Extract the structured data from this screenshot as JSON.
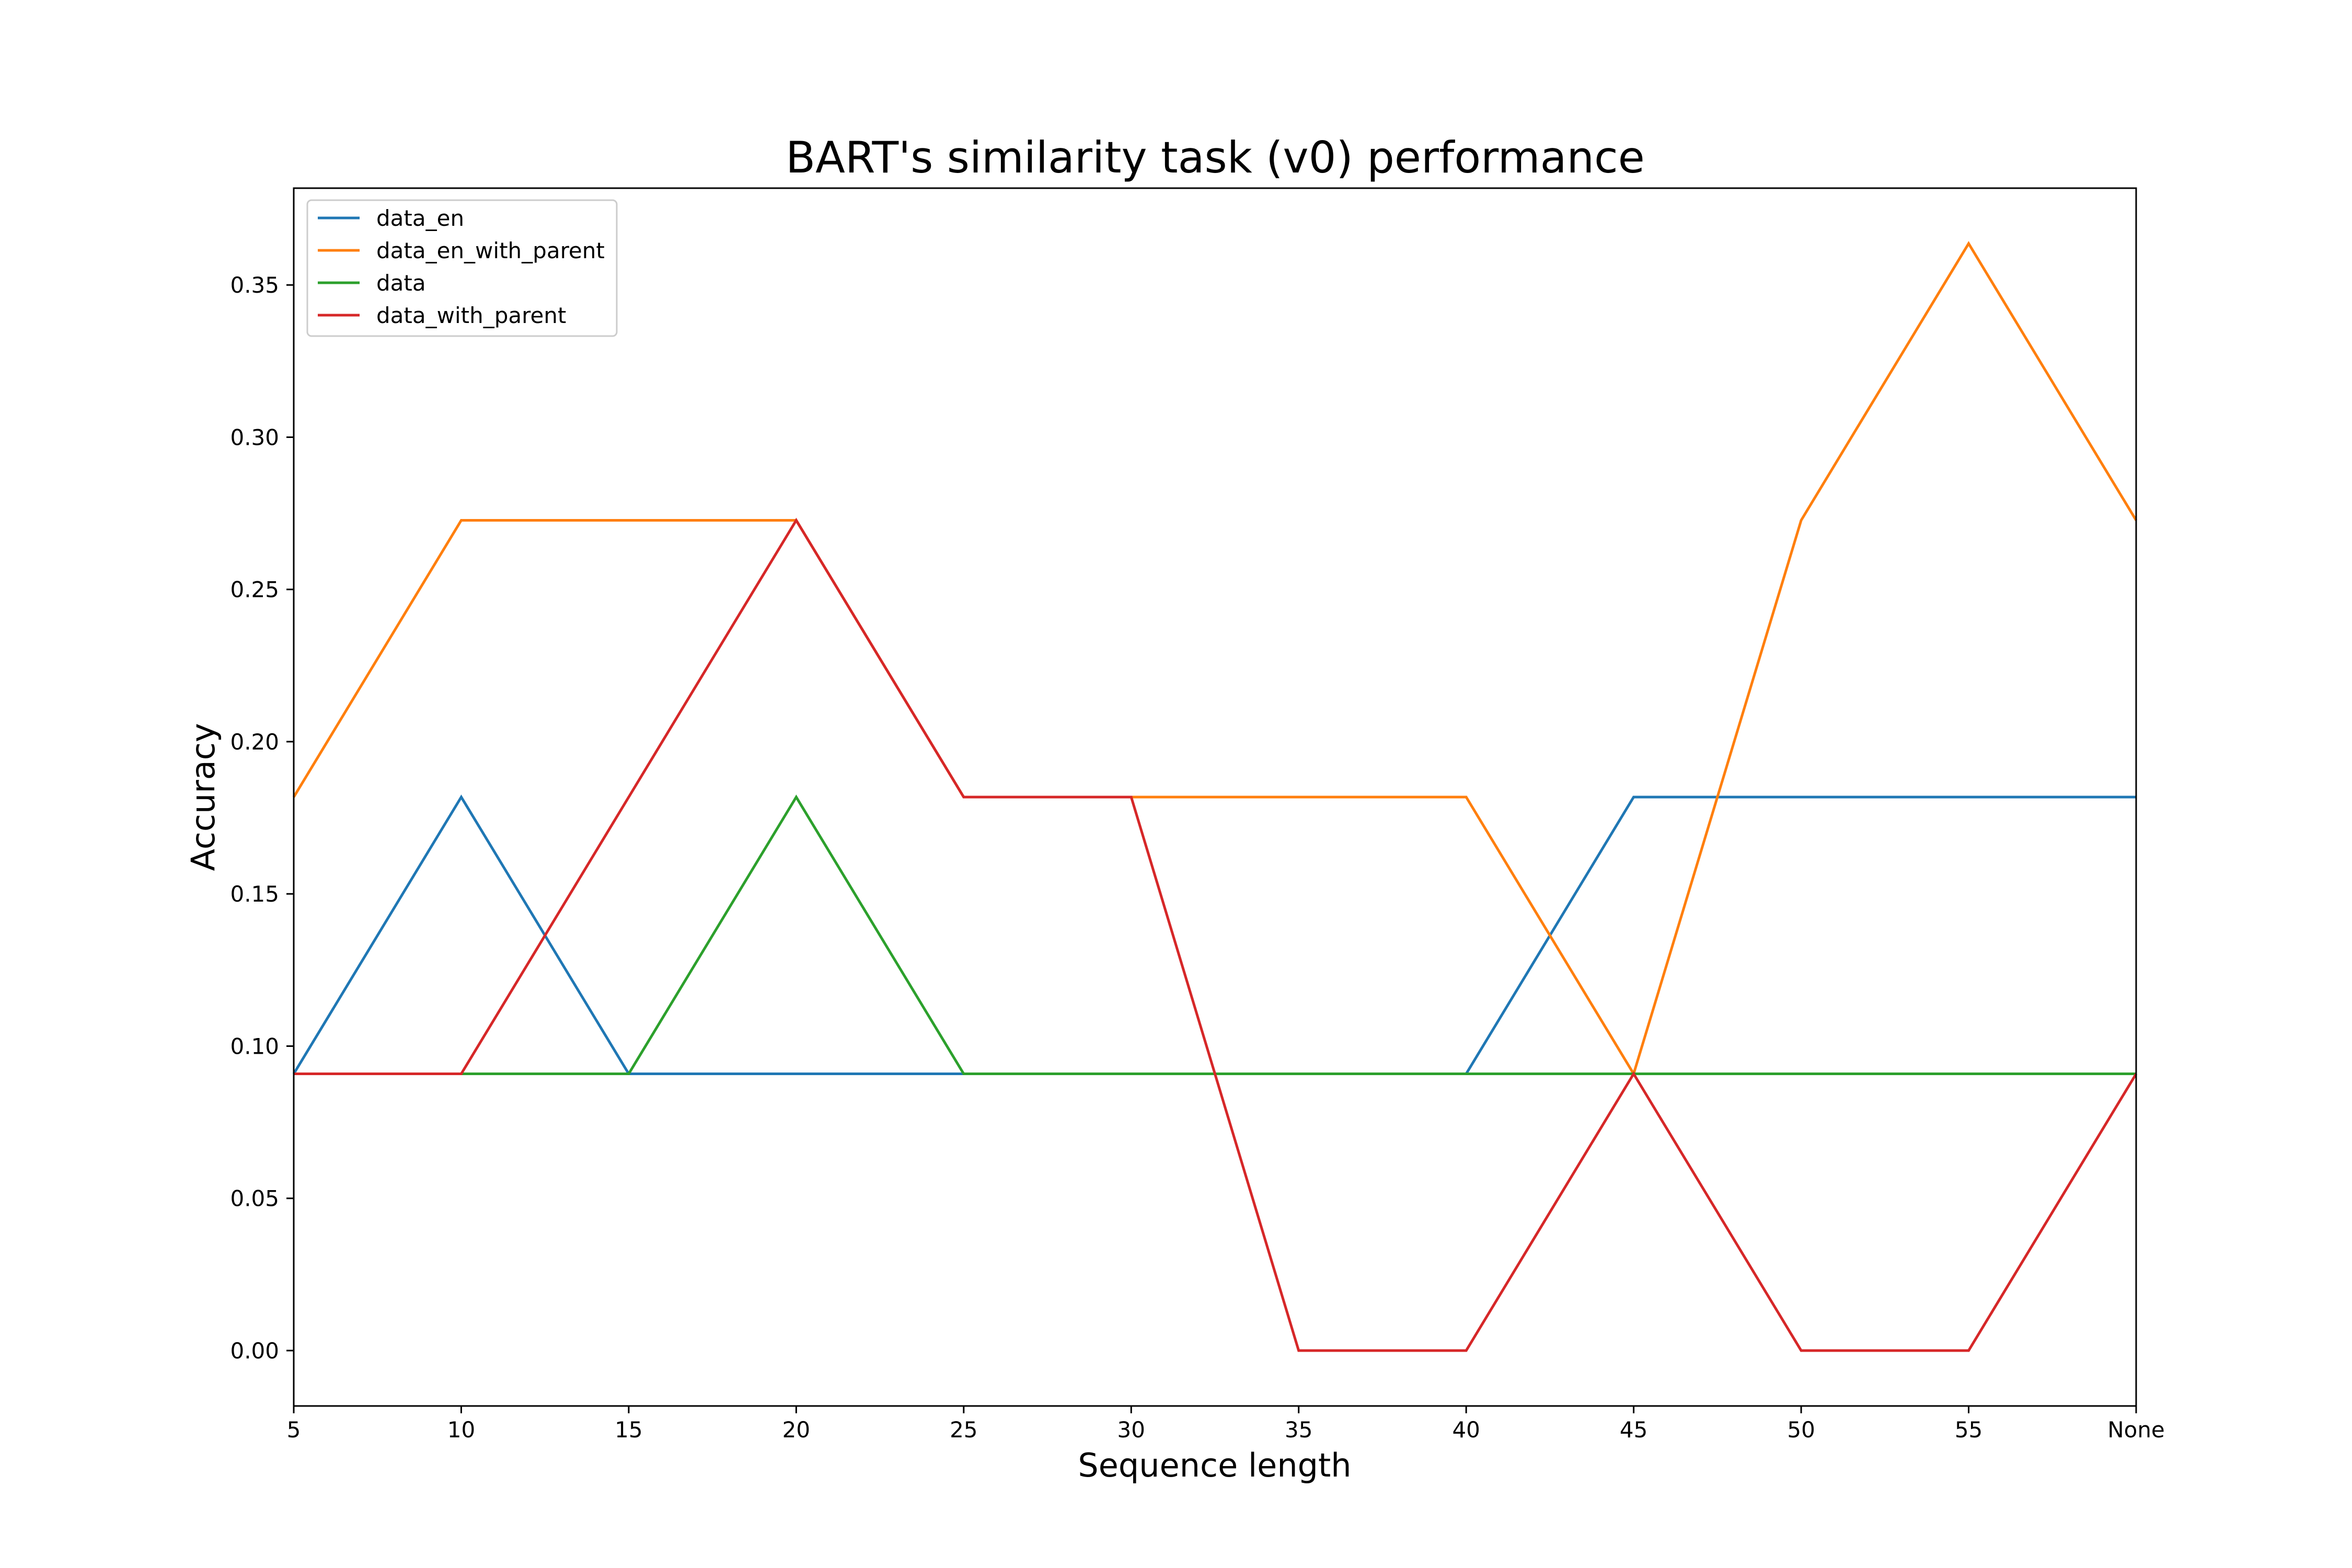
{
  "chart_data": {
    "type": "line",
    "title": "BART's similarity task (v0) performance",
    "xlabel": "Sequence length",
    "ylabel": "Accuracy",
    "categories": [
      "5",
      "10",
      "15",
      "20",
      "25",
      "30",
      "35",
      "40",
      "45",
      "50",
      "55",
      "None"
    ],
    "yticks": [
      "0.00",
      "0.05",
      "0.10",
      "0.15",
      "0.20",
      "0.25",
      "0.30",
      "0.35"
    ],
    "ytick_values": [
      0.0,
      0.05,
      0.1,
      0.15,
      0.2,
      0.25,
      0.3,
      0.35
    ],
    "ylim": [
      -0.0182,
      0.3818
    ],
    "grid": false,
    "legend_position": "upper-left",
    "series": [
      {
        "name": "data_en",
        "color": "#1f77b4",
        "values": [
          0.0909,
          0.1818,
          0.0909,
          0.0909,
          0.0909,
          0.0909,
          0.0909,
          0.0909,
          0.1818,
          0.1818,
          0.1818,
          0.1818
        ]
      },
      {
        "name": "data_en_with_parent",
        "color": "#ff7f0e",
        "values": [
          0.1818,
          0.2727,
          0.2727,
          0.2727,
          0.1818,
          0.1818,
          0.1818,
          0.1818,
          0.0909,
          0.2727,
          0.3636,
          0.2727
        ]
      },
      {
        "name": "data",
        "color": "#2ca02c",
        "values": [
          0.0909,
          0.0909,
          0.0909,
          0.1818,
          0.0909,
          0.0909,
          0.0909,
          0.0909,
          0.0909,
          0.0909,
          0.0909,
          0.0909
        ]
      },
      {
        "name": "data_with_parent",
        "color": "#d62728",
        "values": [
          0.0909,
          0.0909,
          0.1818,
          0.2727,
          0.1818,
          0.1818,
          0.0,
          0.0,
          0.0909,
          0.0,
          0.0,
          0.0909
        ]
      }
    ]
  }
}
